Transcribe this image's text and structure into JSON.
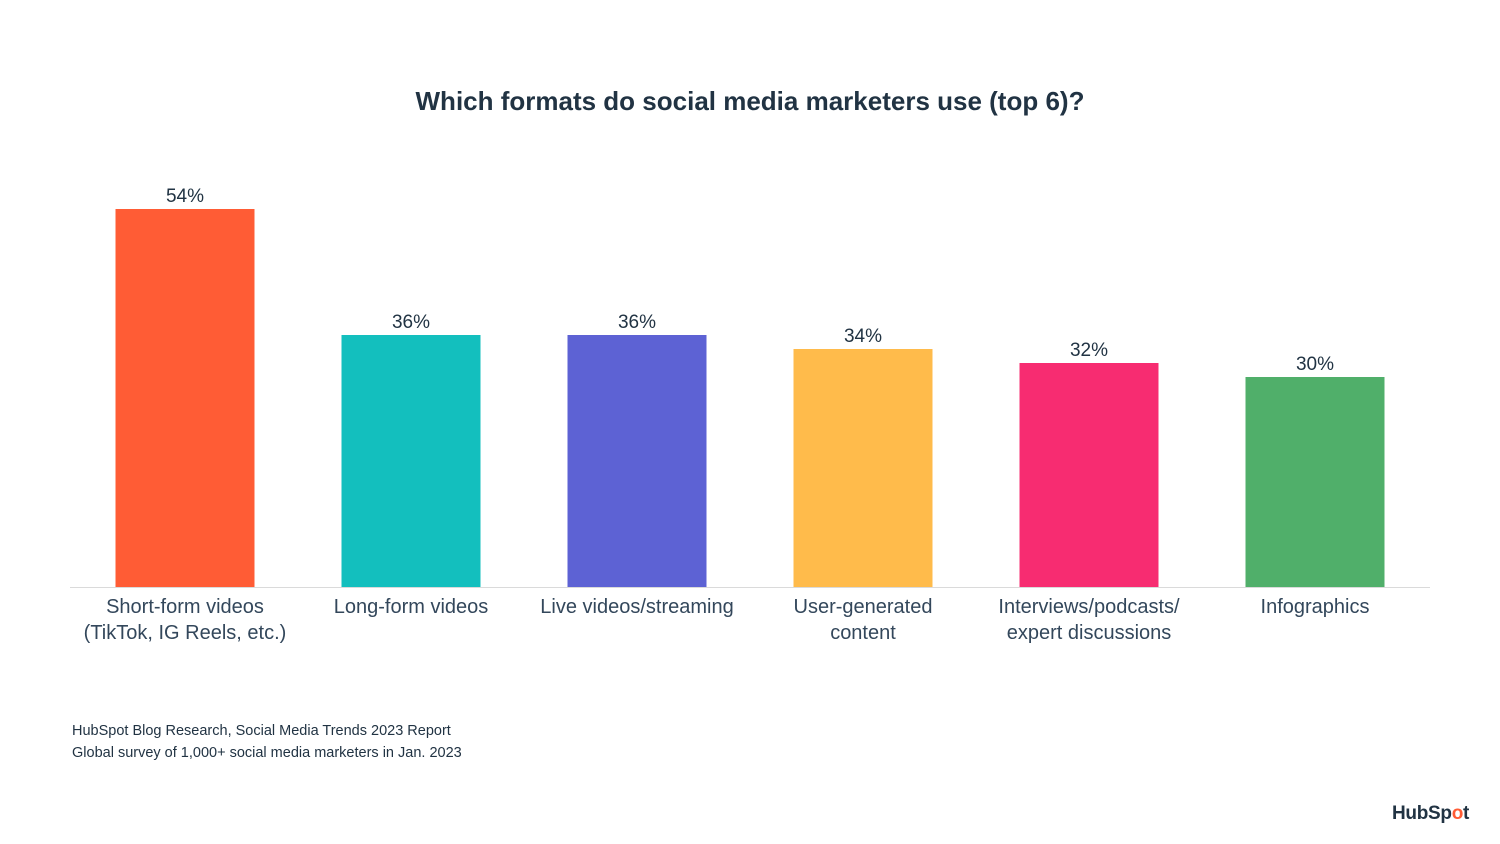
{
  "chart_data": {
    "type": "bar",
    "title": "Which formats do social media marketers use (top 6)?",
    "xlabel": "",
    "ylabel": "",
    "ylim": [
      0,
      60
    ],
    "categories": [
      [
        "Short-form videos",
        "(TikTok, IG Reels, etc.)"
      ],
      [
        "Long-form videos"
      ],
      [
        "Live videos/streaming"
      ],
      [
        "User-generated",
        "content"
      ],
      [
        "Interviews/podcasts/",
        "expert discussions"
      ],
      [
        "Infographics"
      ]
    ],
    "values": [
      54,
      36,
      36,
      34,
      32,
      30
    ],
    "value_labels": [
      "54%",
      "36%",
      "36%",
      "34%",
      "32%",
      "30%"
    ],
    "colors": [
      "#ff5c35",
      "#13bfbe",
      "#5d62d4",
      "#ffbb4b",
      "#f72c71",
      "#50af6a"
    ],
    "grid": false,
    "legend": "none"
  },
  "source": {
    "line1": "HubSpot Blog Research, Social Media Trends 2023 Report",
    "line2": "Global survey of 1,000+ social media marketers in Jan. 2023"
  },
  "brand": {
    "logo_text": "HubSpot",
    "logo_part1": "HubSp",
    "logo_part2": "o",
    "logo_part3": "t",
    "accent": "#ff5c35",
    "text_color": "#213343"
  }
}
